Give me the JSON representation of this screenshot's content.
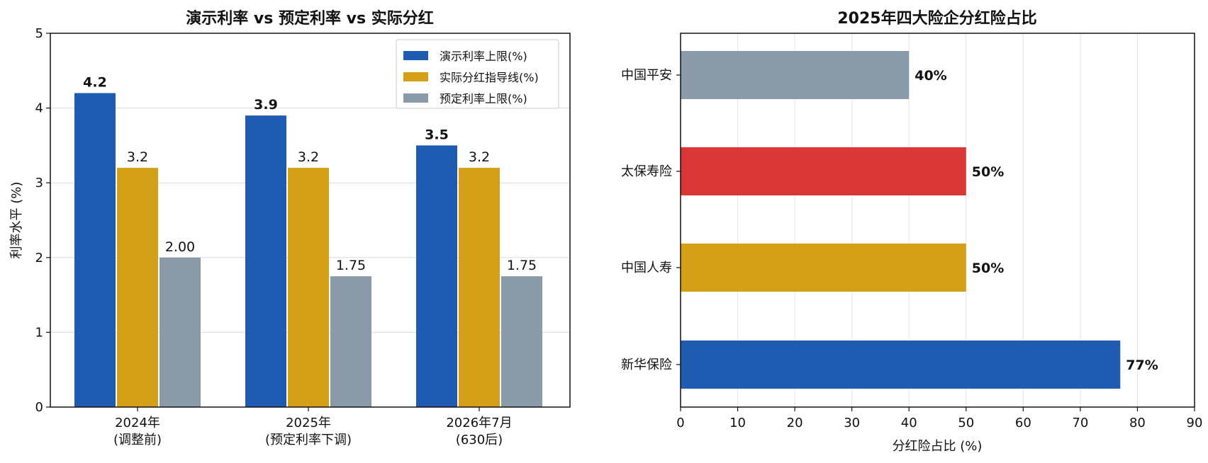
{
  "chart_data": [
    {
      "type": "bar",
      "title": "演示利率 vs 预定利率 vs 实际分红",
      "xlabel": "",
      "ylabel": "利率水平 (%)",
      "ylim": [
        0,
        5
      ],
      "yticks": [
        "0",
        "1",
        "2",
        "3",
        "4",
        "5"
      ],
      "categories": [
        [
          "2024年",
          "(调整前)"
        ],
        [
          "2025年",
          "(预定利率下调)"
        ],
        [
          "2026年7月",
          "(630后)"
        ]
      ],
      "series": [
        {
          "name": "演示利率上限(%)",
          "color": "#1f5bb0",
          "values": [
            4.2,
            3.9,
            3.5
          ],
          "labels": [
            "4.2",
            "3.9",
            "3.5"
          ],
          "bold": true
        },
        {
          "name": "实际分红指导线(%)",
          "color": "#d4a017",
          "values": [
            3.2,
            3.2,
            3.2
          ],
          "labels": [
            "3.2",
            "3.2",
            "3.2"
          ],
          "bold": false
        },
        {
          "name": "预定利率上限(%)",
          "color": "#8a9aa8",
          "values": [
            2.0,
            1.75,
            1.75
          ],
          "labels": [
            "2.00",
            "1.75",
            "1.75"
          ],
          "bold": false
        }
      ],
      "grid": true,
      "legend": "top-right"
    },
    {
      "type": "bar",
      "orientation": "horizontal",
      "title": "2025年四大险企分红险占比",
      "xlabel": "分红险占比 (%)",
      "ylabel": "",
      "xlim": [
        0,
        90
      ],
      "xticks": [
        "0",
        "10",
        "20",
        "30",
        "40",
        "50",
        "60",
        "70",
        "80",
        "90"
      ],
      "categories": [
        "中国平安",
        "太保寿险",
        "中国人寿",
        "新华保险"
      ],
      "values": [
        40,
        50,
        50,
        77
      ],
      "labels": [
        "40%",
        "50%",
        "50%",
        "77%"
      ],
      "colors": [
        "#8a9aa8",
        "#d93636",
        "#d4a017",
        "#1f5bb0"
      ],
      "grid": true
    }
  ]
}
